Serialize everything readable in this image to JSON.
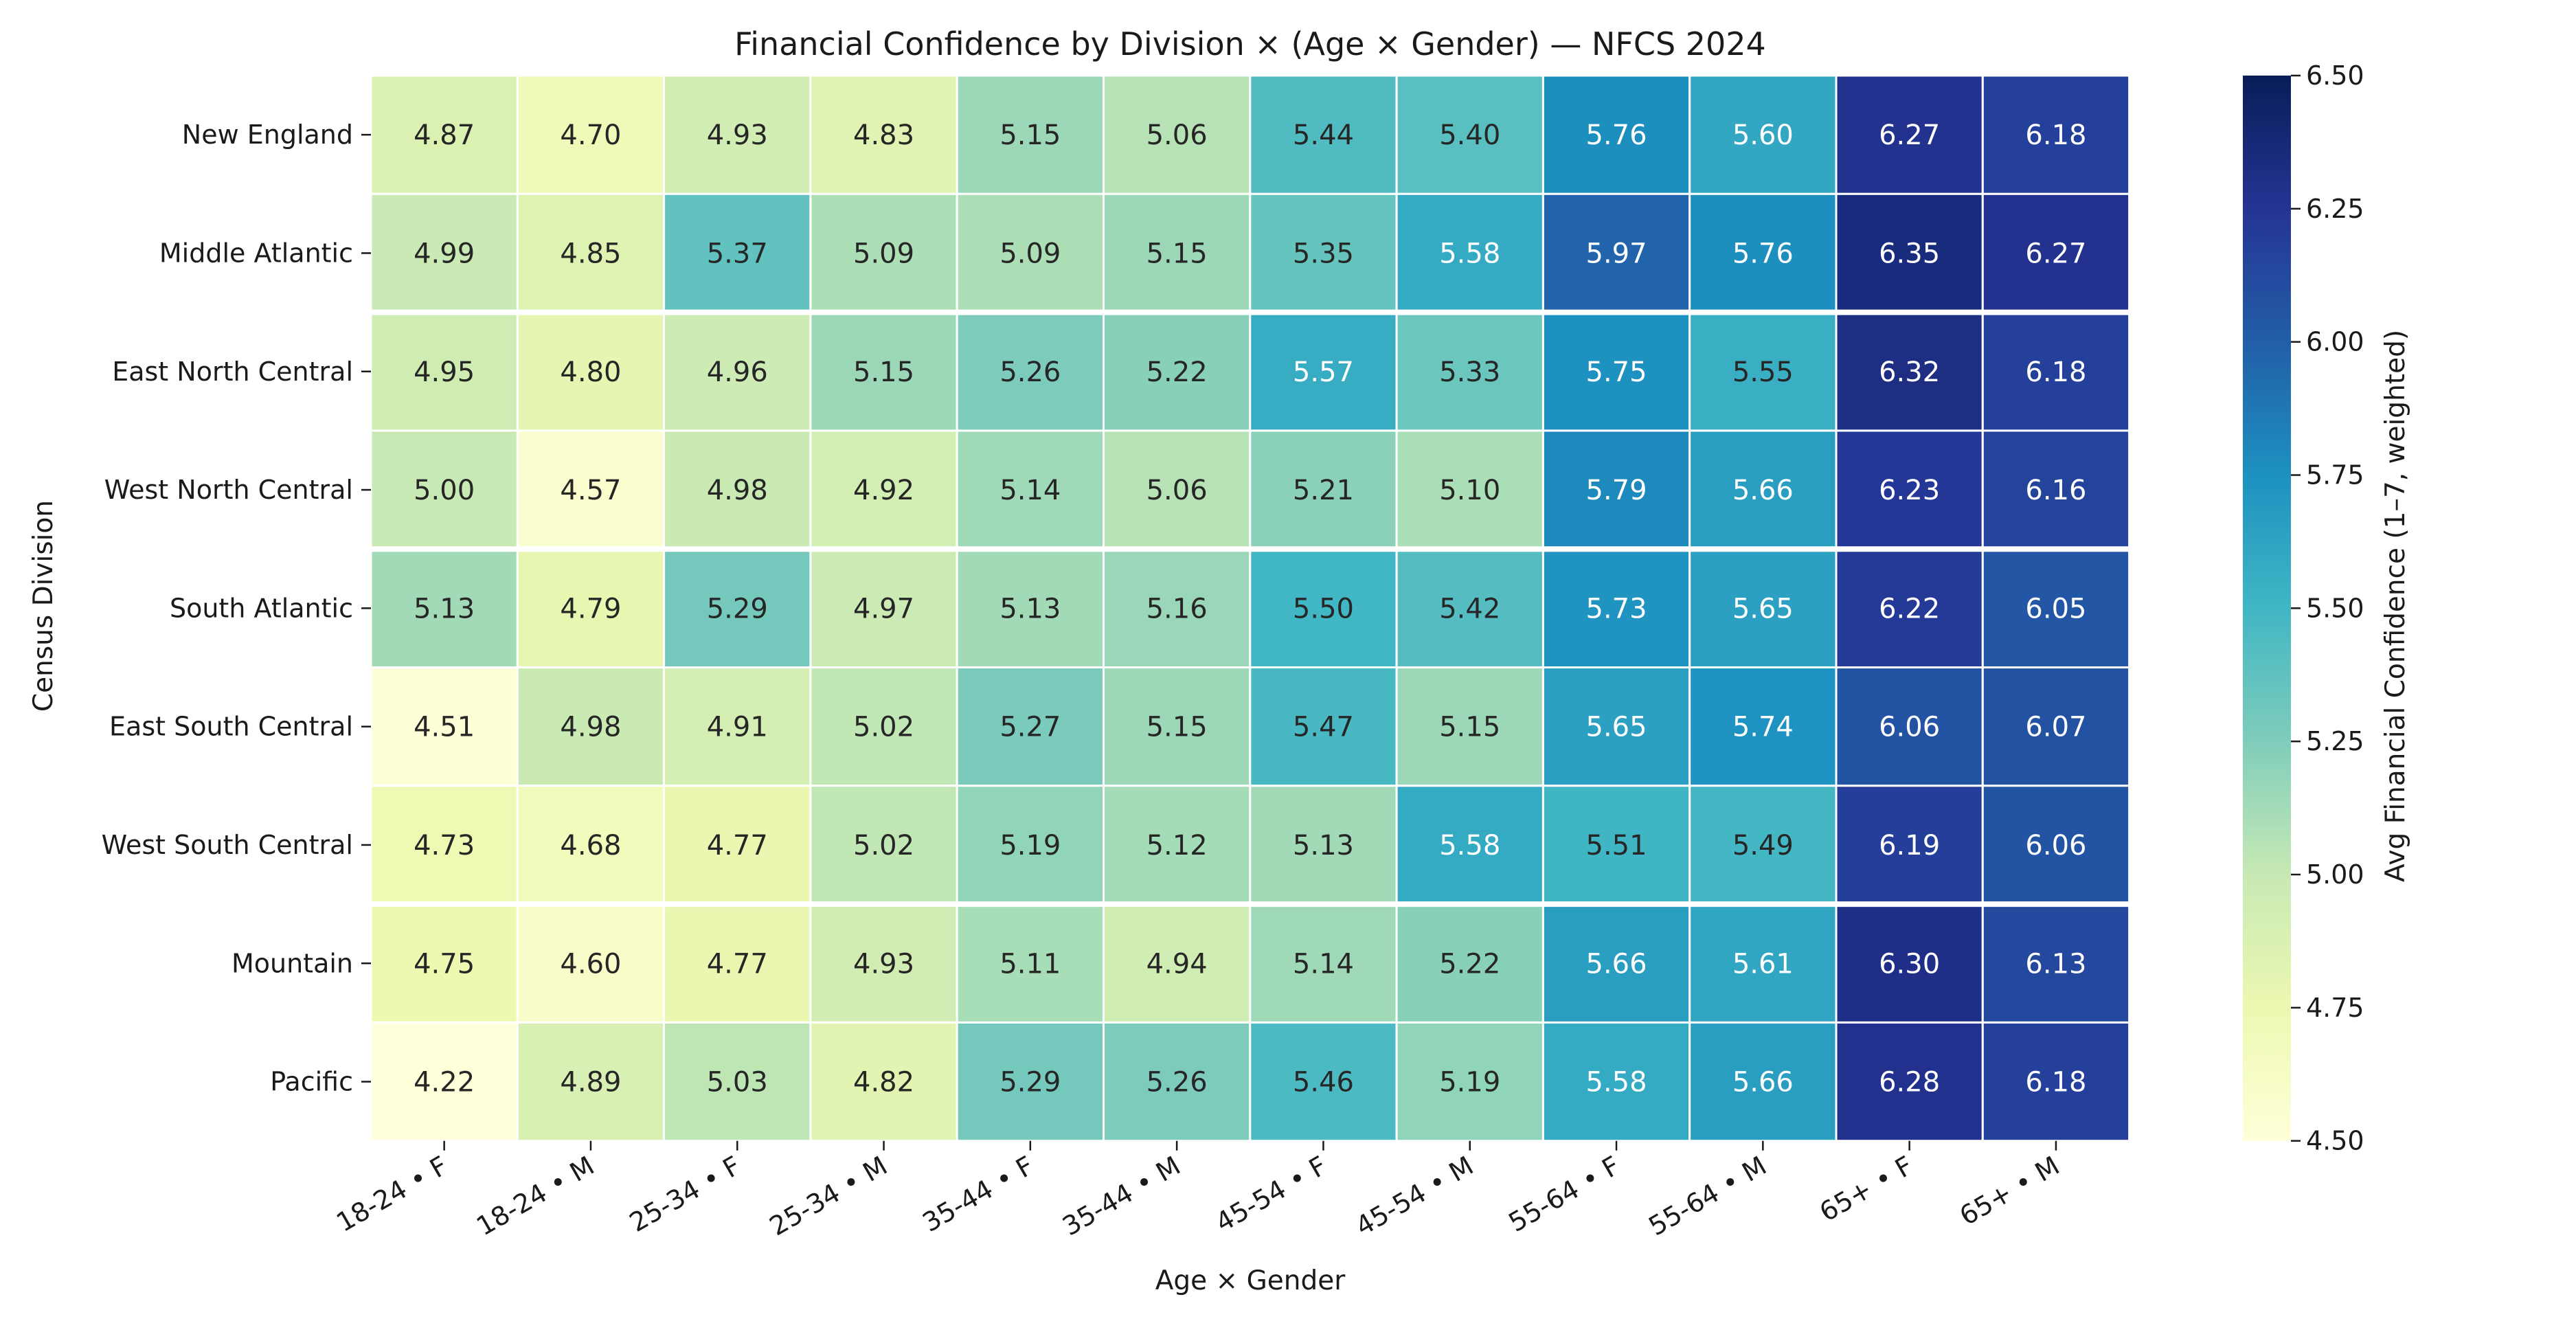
{
  "chart_data": {
    "type": "heatmap",
    "title": "Financial Confidence by Division × (Age × Gender) — NFCS 2024",
    "xlabel": "Age × Gender",
    "ylabel": "Census Division",
    "x_categories": [
      "18-24 • F",
      "18-24 • M",
      "25-34 • F",
      "25-34 • M",
      "35-44 • F",
      "35-44 • M",
      "45-54 • F",
      "45-54 • M",
      "55-64 • F",
      "55-64 • M",
      "65+ • F",
      "65+ • M"
    ],
    "y_categories": [
      "New England",
      "Middle Atlantic",
      "East North Central",
      "West North Central",
      "South Atlantic",
      "East South Central",
      "West South Central",
      "Mountain",
      "Pacific"
    ],
    "values": [
      [
        4.87,
        4.7,
        4.93,
        4.83,
        5.15,
        5.06,
        5.44,
        5.4,
        5.76,
        5.6,
        6.27,
        6.18
      ],
      [
        4.99,
        4.85,
        5.37,
        5.09,
        5.09,
        5.15,
        5.35,
        5.58,
        5.97,
        5.76,
        6.35,
        6.27
      ],
      [
        4.95,
        4.8,
        4.96,
        5.15,
        5.26,
        5.22,
        5.57,
        5.33,
        5.75,
        5.55,
        6.32,
        6.18
      ],
      [
        5.0,
        4.57,
        4.98,
        4.92,
        5.14,
        5.06,
        5.21,
        5.1,
        5.79,
        5.66,
        6.23,
        6.16
      ],
      [
        5.13,
        4.79,
        5.29,
        4.97,
        5.13,
        5.16,
        5.5,
        5.42,
        5.73,
        5.65,
        6.22,
        6.05
      ],
      [
        4.51,
        4.98,
        4.91,
        5.02,
        5.27,
        5.15,
        5.47,
        5.15,
        5.65,
        5.74,
        6.06,
        6.07
      ],
      [
        4.73,
        4.68,
        4.77,
        5.02,
        5.19,
        5.12,
        5.13,
        5.58,
        5.51,
        5.49,
        6.19,
        6.06
      ],
      [
        4.75,
        4.6,
        4.77,
        4.93,
        5.11,
        4.94,
        5.14,
        5.22,
        5.66,
        5.61,
        6.3,
        6.13
      ],
      [
        4.22,
        4.89,
        5.03,
        4.82,
        5.29,
        5.26,
        5.46,
        5.19,
        5.58,
        5.66,
        6.28,
        6.18
      ]
    ],
    "value_format": "0.00",
    "colorbar": {
      "label": "Avg Financial Confidence (1–7, weighted)",
      "range": [
        4.5,
        6.5
      ],
      "ticks": [
        "4.50",
        "4.75",
        "5.00",
        "5.25",
        "5.50",
        "5.75",
        "6.00",
        "6.25",
        "6.50"
      ],
      "colormap": "YlGnBu"
    },
    "row_separators_after": [
      "Middle Atlantic",
      "West North Central",
      "West South Central"
    ],
    "grid": false,
    "legend": "colorbar-right"
  }
}
